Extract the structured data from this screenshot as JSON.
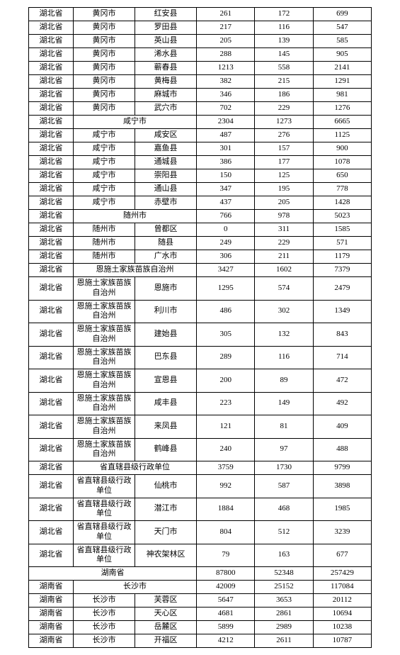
{
  "table": {
    "border_color": "#000000",
    "background_color": "#ffffff",
    "font_family": "SimSun",
    "font_size_pt": 9,
    "columns_widths_pct": [
      13,
      18,
      18,
      17,
      17,
      17
    ],
    "rows": [
      {
        "type": "normal",
        "cells": [
          "湖北省",
          "黄冈市",
          "红安县",
          "261",
          "172",
          "699"
        ]
      },
      {
        "type": "normal",
        "cells": [
          "湖北省",
          "黄冈市",
          "罗田县",
          "217",
          "116",
          "547"
        ]
      },
      {
        "type": "normal",
        "cells": [
          "湖北省",
          "黄冈市",
          "英山县",
          "205",
          "139",
          "585"
        ]
      },
      {
        "type": "normal",
        "cells": [
          "湖北省",
          "黄冈市",
          "浠水县",
          "288",
          "145",
          "905"
        ]
      },
      {
        "type": "normal",
        "cells": [
          "湖北省",
          "黄冈市",
          "蕲春县",
          "1213",
          "558",
          "2141"
        ]
      },
      {
        "type": "normal",
        "cells": [
          "湖北省",
          "黄冈市",
          "黄梅县",
          "382",
          "215",
          "1291"
        ]
      },
      {
        "type": "normal",
        "cells": [
          "湖北省",
          "黄冈市",
          "麻城市",
          "346",
          "186",
          "981"
        ]
      },
      {
        "type": "normal",
        "cells": [
          "湖北省",
          "黄冈市",
          "武穴市",
          "702",
          "229",
          "1276"
        ]
      },
      {
        "type": "span2",
        "cells": [
          "湖北省",
          "咸宁市",
          "2304",
          "1273",
          "6665"
        ]
      },
      {
        "type": "normal",
        "cells": [
          "湖北省",
          "咸宁市",
          "咸安区",
          "487",
          "276",
          "1125"
        ]
      },
      {
        "type": "normal",
        "cells": [
          "湖北省",
          "咸宁市",
          "嘉鱼县",
          "301",
          "157",
          "900"
        ]
      },
      {
        "type": "normal",
        "cells": [
          "湖北省",
          "咸宁市",
          "通城县",
          "386",
          "177",
          "1078"
        ]
      },
      {
        "type": "normal",
        "cells": [
          "湖北省",
          "咸宁市",
          "崇阳县",
          "150",
          "125",
          "650"
        ]
      },
      {
        "type": "normal",
        "cells": [
          "湖北省",
          "咸宁市",
          "通山县",
          "347",
          "195",
          "778"
        ]
      },
      {
        "type": "normal",
        "cells": [
          "湖北省",
          "咸宁市",
          "赤壁市",
          "437",
          "205",
          "1428"
        ]
      },
      {
        "type": "span2",
        "cells": [
          "湖北省",
          "随州市",
          "766",
          "978",
          "5023"
        ]
      },
      {
        "type": "normal",
        "cells": [
          "湖北省",
          "随州市",
          "曾都区",
          "0",
          "311",
          "1585"
        ]
      },
      {
        "type": "normal",
        "cells": [
          "湖北省",
          "随州市",
          "随县",
          "249",
          "229",
          "571"
        ]
      },
      {
        "type": "normal",
        "cells": [
          "湖北省",
          "随州市",
          "广水市",
          "306",
          "211",
          "1179"
        ]
      },
      {
        "type": "span2",
        "cells": [
          "湖北省",
          "恩施土家族苗族自治州",
          "3427",
          "1602",
          "7379"
        ]
      },
      {
        "type": "tall",
        "cells": [
          "湖北省",
          "恩施土家族苗族自治州",
          "恩施市",
          "1295",
          "574",
          "2479"
        ]
      },
      {
        "type": "tall",
        "cells": [
          "湖北省",
          "恩施土家族苗族自治州",
          "利川市",
          "486",
          "302",
          "1349"
        ]
      },
      {
        "type": "tall",
        "cells": [
          "湖北省",
          "恩施土家族苗族自治州",
          "建始县",
          "305",
          "132",
          "843"
        ]
      },
      {
        "type": "tall",
        "cells": [
          "湖北省",
          "恩施土家族苗族自治州",
          "巴东县",
          "289",
          "116",
          "714"
        ]
      },
      {
        "type": "tall",
        "cells": [
          "湖北省",
          "恩施土家族苗族自治州",
          "宣恩县",
          "200",
          "89",
          "472"
        ]
      },
      {
        "type": "tall",
        "cells": [
          "湖北省",
          "恩施土家族苗族自治州",
          "咸丰县",
          "223",
          "149",
          "492"
        ]
      },
      {
        "type": "tall",
        "cells": [
          "湖北省",
          "恩施土家族苗族自治州",
          "来凤县",
          "121",
          "81",
          "409"
        ]
      },
      {
        "type": "tall",
        "cells": [
          "湖北省",
          "恩施土家族苗族自治州",
          "鹤峰县",
          "240",
          "97",
          "488"
        ]
      },
      {
        "type": "span2",
        "cells": [
          "湖北省",
          "省直辖县级行政单位",
          "3759",
          "1730",
          "9799"
        ]
      },
      {
        "type": "tall",
        "cells": [
          "湖北省",
          "省直辖县级行政单位",
          "仙桃市",
          "992",
          "587",
          "3898"
        ]
      },
      {
        "type": "tall",
        "cells": [
          "湖北省",
          "省直辖县级行政单位",
          "潜江市",
          "1884",
          "468",
          "1985"
        ]
      },
      {
        "type": "tall",
        "cells": [
          "湖北省",
          "省直辖县级行政单位",
          "天门市",
          "804",
          "512",
          "3239"
        ]
      },
      {
        "type": "tall",
        "cells": [
          "湖北省",
          "省直辖县级行政单位",
          "神农架林区",
          "79",
          "163",
          "677"
        ]
      },
      {
        "type": "span3",
        "cells": [
          "湖南省",
          "87800",
          "52348",
          "257429"
        ]
      },
      {
        "type": "span2",
        "cells": [
          "湖南省",
          "长沙市",
          "42009",
          "25152",
          "117084"
        ]
      },
      {
        "type": "normal",
        "cells": [
          "湖南省",
          "长沙市",
          "芙蓉区",
          "5647",
          "3653",
          "20112"
        ]
      },
      {
        "type": "normal",
        "cells": [
          "湖南省",
          "长沙市",
          "天心区",
          "4681",
          "2861",
          "10694"
        ]
      },
      {
        "type": "normal",
        "cells": [
          "湖南省",
          "长沙市",
          "岳麓区",
          "5899",
          "2989",
          "10238"
        ]
      },
      {
        "type": "normal",
        "cells": [
          "湖南省",
          "长沙市",
          "开福区",
          "4212",
          "2611",
          "10787"
        ]
      }
    ]
  }
}
